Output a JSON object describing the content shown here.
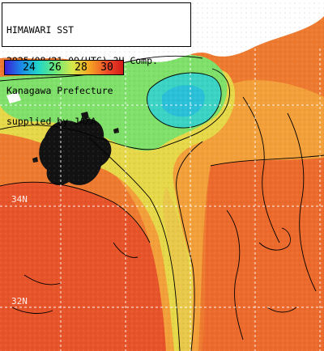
{
  "header": {
    "lines": [
      "HIMAWARI SST",
      "2025/08/21 09(UTC) 3H Comp.",
      "Kanagawa Prefecture",
      "supplied by JAXA"
    ]
  },
  "colorbar": {
    "labels": [
      "24",
      "26",
      "28",
      "30"
    ],
    "colors": [
      "#3b1fd6",
      "#1a8be8",
      "#22d6c8",
      "#6be87a",
      "#d6e84a",
      "#f5a623",
      "#f0502a",
      "#d21a1a"
    ]
  },
  "grid_labels": [
    "32N",
    "34N"
  ],
  "colors": {
    "land": "#ffffff",
    "cloud": "#111111",
    "warm": "#f0702a",
    "orange": "#f4a93a",
    "yellow": "#e8d84a",
    "green": "#7ee06a",
    "cyan": "#38d8c0",
    "red_hot": "#e94a2a",
    "gridline": "#ffffff",
    "contour": "#000000"
  }
}
